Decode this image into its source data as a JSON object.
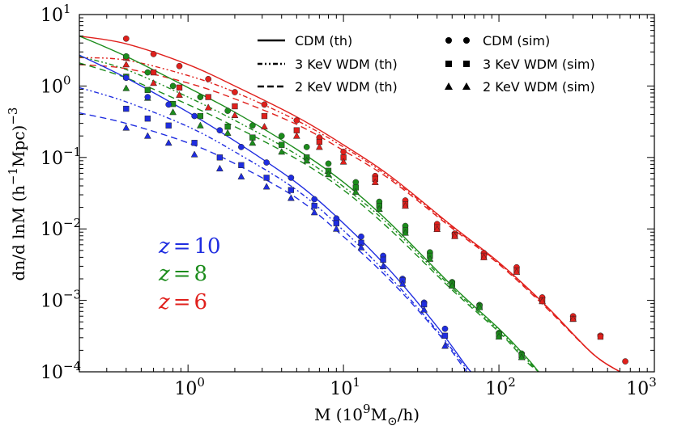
{
  "chart_data": {
    "type": "line",
    "xscale": "log",
    "yscale": "log",
    "xlim": [
      0.2,
      1000
    ],
    "ylim": [
      0.0001,
      10
    ],
    "xlabel": "M (10^9 M_sun/h)",
    "xlabel_parts": {
      "main": "M (10",
      "exp": "9",
      "unit": "M",
      "sub": "⊙",
      "tail": "/h)"
    },
    "ylabel": "dn/d lnM (h^-1 Mpc)^-3",
    "ylabel_parts": {
      "main": "dn/d lnM (h",
      "exp1": "−1",
      "mid": "Mpc)",
      "exp2": "−3"
    },
    "x_ticks": [
      {
        "value": 1,
        "base": "10",
        "exp": "0"
      },
      {
        "value": 10,
        "base": "10",
        "exp": "1"
      },
      {
        "value": 100,
        "base": "10",
        "exp": "2"
      },
      {
        "value": 1000,
        "base": "10",
        "exp": "3"
      }
    ],
    "y_ticks": [
      {
        "value": 10,
        "base": "10",
        "exp": "1"
      },
      {
        "value": 1,
        "base": "10",
        "exp": "0"
      },
      {
        "value": 0.1,
        "base": "10",
        "exp": "-1"
      },
      {
        "value": 0.01,
        "base": "10",
        "exp": "-2"
      },
      {
        "value": 0.001,
        "base": "10",
        "exp": "-3"
      },
      {
        "value": 0.0001,
        "base": "10",
        "exp": "-4"
      }
    ],
    "legend_position": "top-right",
    "legend": {
      "lines": [
        {
          "label": "CDM (th)",
          "style": "solid"
        },
        {
          "label": "3 KeV WDM (th)",
          "style": "dashdotdot"
        },
        {
          "label": "2 KeV WDM (th)",
          "style": "dashed"
        }
      ],
      "markers": [
        {
          "label": "CDM (sim)",
          "marker": "circle"
        },
        {
          "label": "3 KeV WDM (sim)",
          "marker": "square"
        },
        {
          "label": "2 KeV WDM (sim)",
          "marker": "triangle"
        }
      ]
    },
    "redshifts": [
      {
        "label": "z = 10",
        "var": "z",
        "eq": "=",
        "num": "10",
        "color": "#1f2de0"
      },
      {
        "label": "z = 8",
        "var": "z",
        "eq": "=",
        "num": "8",
        "color": "#1c8c1c"
      },
      {
        "label": "z = 6",
        "var": "z",
        "eq": "=",
        "num": "6",
        "color": "#e0201c"
      }
    ],
    "theory": [
      {
        "z": 6,
        "model": "CDM",
        "color": "#e0201c",
        "points": [
          [
            0.2,
            5.0
          ],
          [
            0.4,
            3.9
          ],
          [
            1,
            2.0
          ],
          [
            2,
            1.0
          ],
          [
            5,
            0.37
          ],
          [
            10,
            0.15
          ],
          [
            20,
            0.055
          ],
          [
            50,
            0.011
          ],
          [
            100,
            0.0034
          ],
          [
            200,
            0.00085
          ],
          [
            400,
            0.00018
          ],
          [
            600,
            0.0001
          ]
        ]
      },
      {
        "z": 6,
        "model": "WDM3",
        "color": "#e0201c",
        "points": [
          [
            0.2,
            2.5
          ],
          [
            0.4,
            2.3
          ],
          [
            1,
            1.4
          ],
          [
            2,
            0.82
          ],
          [
            5,
            0.33
          ],
          [
            10,
            0.14
          ],
          [
            20,
            0.052
          ],
          [
            50,
            0.0107
          ],
          [
            100,
            0.0033
          ],
          [
            200,
            0.00083
          ],
          [
            400,
            0.00018
          ],
          [
            600,
            0.0001
          ]
        ]
      },
      {
        "z": 6,
        "model": "WDM2",
        "color": "#e0201c",
        "points": [
          [
            0.2,
            2.0
          ],
          [
            0.4,
            1.75
          ],
          [
            1,
            1.1
          ],
          [
            2,
            0.66
          ],
          [
            5,
            0.29
          ],
          [
            10,
            0.125
          ],
          [
            20,
            0.049
          ],
          [
            50,
            0.0102
          ],
          [
            100,
            0.0032
          ],
          [
            200,
            0.0008
          ],
          [
            400,
            0.00018
          ],
          [
            600,
            0.0001
          ]
        ]
      },
      {
        "z": 8,
        "model": "CDM",
        "color": "#1c8c1c",
        "points": [
          [
            0.2,
            5.0
          ],
          [
            0.4,
            2.6
          ],
          [
            1,
            0.95
          ],
          [
            2,
            0.43
          ],
          [
            5,
            0.13
          ],
          [
            10,
            0.045
          ],
          [
            20,
            0.012
          ],
          [
            50,
            0.0016
          ],
          [
            100,
            0.0004
          ],
          [
            150,
            0.00016
          ],
          [
            180,
            0.0001
          ]
        ]
      },
      {
        "z": 8,
        "model": "WDM3",
        "color": "#1c8c1c",
        "points": [
          [
            0.2,
            2.6
          ],
          [
            0.4,
            1.7
          ],
          [
            1,
            0.7
          ],
          [
            2,
            0.33
          ],
          [
            5,
            0.11
          ],
          [
            10,
            0.039
          ],
          [
            20,
            0.011
          ],
          [
            50,
            0.0015
          ],
          [
            100,
            0.00038
          ],
          [
            150,
            0.00015
          ],
          [
            180,
            0.0001
          ]
        ]
      },
      {
        "z": 8,
        "model": "WDM2",
        "color": "#1c8c1c",
        "points": [
          [
            0.2,
            2.1
          ],
          [
            0.4,
            1.3
          ],
          [
            1,
            0.55
          ],
          [
            2,
            0.27
          ],
          [
            5,
            0.095
          ],
          [
            10,
            0.035
          ],
          [
            20,
            0.0097
          ],
          [
            50,
            0.0014
          ],
          [
            100,
            0.00036
          ],
          [
            150,
            0.00014
          ],
          [
            180,
            0.0001
          ]
        ]
      },
      {
        "z": 10,
        "model": "CDM",
        "color": "#1f2de0",
        "points": [
          [
            0.2,
            2.7
          ],
          [
            0.4,
            1.3
          ],
          [
            1,
            0.43
          ],
          [
            2,
            0.17
          ],
          [
            5,
            0.044
          ],
          [
            10,
            0.012
          ],
          [
            20,
            0.0026
          ],
          [
            40,
            0.00043
          ],
          [
            60,
            0.00013
          ],
          [
            66,
            0.0001
          ]
        ]
      },
      {
        "z": 10,
        "model": "WDM3",
        "color": "#1f2de0",
        "points": [
          [
            0.2,
            0.95
          ],
          [
            0.4,
            0.6
          ],
          [
            1,
            0.27
          ],
          [
            2,
            0.12
          ],
          [
            5,
            0.035
          ],
          [
            10,
            0.0095
          ],
          [
            20,
            0.0021
          ],
          [
            40,
            0.00038
          ],
          [
            60,
            0.00012
          ],
          [
            64,
            0.0001
          ]
        ]
      },
      {
        "z": 10,
        "model": "WDM2",
        "color": "#1f2de0",
        "points": [
          [
            0.2,
            0.42
          ],
          [
            0.4,
            0.3
          ],
          [
            1,
            0.16
          ],
          [
            2,
            0.082
          ],
          [
            5,
            0.027
          ],
          [
            10,
            0.0078
          ],
          [
            20,
            0.0019
          ],
          [
            40,
            0.00036
          ],
          [
            60,
            0.00011
          ],
          [
            63,
            0.0001
          ]
        ]
      }
    ],
    "simulation": [
      {
        "z": 6,
        "model": "CDM",
        "marker": "circle",
        "color": "#e0201c",
        "points": [
          [
            0.4,
            4.6
          ],
          [
            0.6,
            2.8
          ],
          [
            0.88,
            1.9
          ],
          [
            1.35,
            1.25
          ],
          [
            2,
            0.82
          ],
          [
            3.1,
            0.55
          ],
          [
            5,
            0.33
          ],
          [
            7,
            0.19
          ],
          [
            10,
            0.12
          ],
          [
            16,
            0.055
          ],
          [
            25,
            0.025
          ],
          [
            40,
            0.0117
          ],
          [
            52,
            0.0086
          ],
          [
            80,
            0.0046
          ],
          [
            130,
            0.0029
          ],
          [
            190,
            0.0011
          ],
          [
            300,
            0.0006
          ],
          [
            450,
            0.00032
          ],
          [
            650,
            0.00014
          ]
        ]
      },
      {
        "z": 6,
        "model": "WDM3",
        "marker": "square",
        "color": "#e0201c",
        "points": [
          [
            0.4,
            2.5
          ],
          [
            0.6,
            1.55
          ],
          [
            0.88,
            0.95
          ],
          [
            1.35,
            0.7
          ],
          [
            2,
            0.52
          ],
          [
            3.1,
            0.38
          ],
          [
            5,
            0.24
          ],
          [
            7,
            0.165
          ],
          [
            10,
            0.1
          ],
          [
            16,
            0.05
          ],
          [
            25,
            0.022
          ],
          [
            40,
            0.0105
          ],
          [
            52,
            0.0082
          ],
          [
            80,
            0.0042
          ],
          [
            130,
            0.0026
          ],
          [
            190,
            0.001
          ],
          [
            300,
            0.00055
          ],
          [
            450,
            0.00031
          ]
        ]
      },
      {
        "z": 6,
        "model": "WDM2",
        "marker": "triangle",
        "color": "#e0201c",
        "points": [
          [
            0.4,
            2.0
          ],
          [
            0.6,
            1.1
          ],
          [
            0.88,
            0.75
          ],
          [
            1.35,
            0.5
          ],
          [
            2,
            0.39
          ],
          [
            3.1,
            0.27
          ],
          [
            5,
            0.2
          ],
          [
            7,
            0.14
          ],
          [
            10,
            0.087
          ],
          [
            16,
            0.045
          ],
          [
            25,
            0.021
          ],
          [
            40,
            0.0099
          ],
          [
            52,
            0.0079
          ],
          [
            80,
            0.004
          ],
          [
            130,
            0.0025
          ],
          [
            190,
            0.00097
          ],
          [
            300,
            0.00055
          ]
        ]
      },
      {
        "z": 8,
        "model": "CDM",
        "marker": "circle",
        "color": "#1c8c1c",
        "points": [
          [
            0.4,
            2.6
          ],
          [
            0.55,
            1.55
          ],
          [
            0.8,
            1.0
          ],
          [
            1.2,
            0.7
          ],
          [
            1.8,
            0.45
          ],
          [
            2.6,
            0.28
          ],
          [
            4,
            0.2
          ],
          [
            5.8,
            0.14
          ],
          [
            8,
            0.082
          ],
          [
            12,
            0.045
          ],
          [
            17,
            0.024
          ],
          [
            25,
            0.011
          ],
          [
            36,
            0.0047
          ],
          [
            50,
            0.0018
          ],
          [
            75,
            0.00086
          ],
          [
            100,
            0.00035
          ],
          [
            140,
            0.00018
          ]
        ]
      },
      {
        "z": 8,
        "model": "WDM3",
        "marker": "square",
        "color": "#1c8c1c",
        "points": [
          [
            0.4,
            1.35
          ],
          [
            0.55,
            0.88
          ],
          [
            0.8,
            0.56
          ],
          [
            1.2,
            0.38
          ],
          [
            1.8,
            0.27
          ],
          [
            2.6,
            0.19
          ],
          [
            4,
            0.15
          ],
          [
            5.8,
            0.1
          ],
          [
            8,
            0.065
          ],
          [
            12,
            0.038
          ],
          [
            17,
            0.021
          ],
          [
            25,
            0.0095
          ],
          [
            36,
            0.0042
          ],
          [
            50,
            0.0017
          ],
          [
            75,
            0.00082
          ],
          [
            100,
            0.00033
          ],
          [
            140,
            0.00017
          ]
        ]
      },
      {
        "z": 8,
        "model": "WDM2",
        "marker": "triangle",
        "color": "#1c8c1c",
        "points": [
          [
            0.4,
            0.93
          ],
          [
            0.55,
            0.68
          ],
          [
            0.8,
            0.43
          ],
          [
            1.2,
            0.28
          ],
          [
            1.8,
            0.22
          ],
          [
            2.6,
            0.16
          ],
          [
            4,
            0.12
          ],
          [
            5.8,
            0.09
          ],
          [
            8,
            0.058
          ],
          [
            12,
            0.033
          ],
          [
            17,
            0.019
          ],
          [
            25,
            0.0088
          ],
          [
            36,
            0.0038
          ],
          [
            50,
            0.0016
          ],
          [
            75,
            0.0008
          ],
          [
            100,
            0.00031
          ],
          [
            140,
            0.00016
          ]
        ]
      },
      {
        "z": 10,
        "model": "CDM",
        "marker": "circle",
        "color": "#1f2de0",
        "points": [
          [
            0.4,
            1.3
          ],
          [
            0.55,
            0.7
          ],
          [
            0.75,
            0.55
          ],
          [
            1.1,
            0.38
          ],
          [
            1.6,
            0.24
          ],
          [
            2.2,
            0.14
          ],
          [
            3.2,
            0.085
          ],
          [
            4.6,
            0.052
          ],
          [
            6.5,
            0.026
          ],
          [
            9,
            0.014
          ],
          [
            13,
            0.0078
          ],
          [
            18,
            0.0042
          ],
          [
            24,
            0.002
          ],
          [
            33,
            0.00093
          ],
          [
            45,
            0.0004
          ]
        ]
      },
      {
        "z": 10,
        "model": "WDM3",
        "marker": "square",
        "color": "#1f2de0",
        "points": [
          [
            0.4,
            0.48
          ],
          [
            0.55,
            0.35
          ],
          [
            0.75,
            0.28
          ],
          [
            1.1,
            0.16
          ],
          [
            1.6,
            0.1
          ],
          [
            2.2,
            0.078
          ],
          [
            3.2,
            0.052
          ],
          [
            4.6,
            0.035
          ],
          [
            6.5,
            0.021
          ],
          [
            9,
            0.012
          ],
          [
            13,
            0.0064
          ],
          [
            18,
            0.0037
          ],
          [
            24,
            0.0019
          ],
          [
            33,
            0.00088
          ],
          [
            45,
            0.00032
          ]
        ]
      },
      {
        "z": 10,
        "model": "WDM2",
        "marker": "triangle",
        "color": "#1f2de0",
        "points": [
          [
            0.4,
            0.26
          ],
          [
            0.55,
            0.2
          ],
          [
            0.75,
            0.16
          ],
          [
            1.1,
            0.11
          ],
          [
            1.6,
            0.07
          ],
          [
            2.2,
            0.054
          ],
          [
            3.2,
            0.039
          ],
          [
            4.6,
            0.027
          ],
          [
            6.5,
            0.017
          ],
          [
            9,
            0.01
          ],
          [
            13,
            0.0055
          ],
          [
            18,
            0.003
          ],
          [
            24,
            0.0017
          ],
          [
            33,
            0.00074
          ],
          [
            45,
            0.00023
          ]
        ]
      }
    ]
  }
}
